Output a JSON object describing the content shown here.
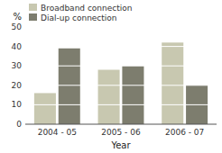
{
  "chart_data": {
    "type": "bar",
    "xlabel": "Year",
    "ylabel": "%",
    "categories": [
      "2004 - 05",
      "2005 - 06",
      "2006 - 07"
    ],
    "series": [
      {
        "name": "Broadband connection",
        "color": "#c8c8b0",
        "values": [
          16,
          28,
          42
        ]
      },
      {
        "name": "Dial-up connection",
        "color": "#7d7d6e",
        "values": [
          39,
          30,
          20
        ]
      }
    ],
    "ylim": [
      0,
      50
    ],
    "yticks": [
      0,
      10,
      20,
      30,
      40,
      50
    ],
    "grid": true,
    "legend": "upper left"
  }
}
